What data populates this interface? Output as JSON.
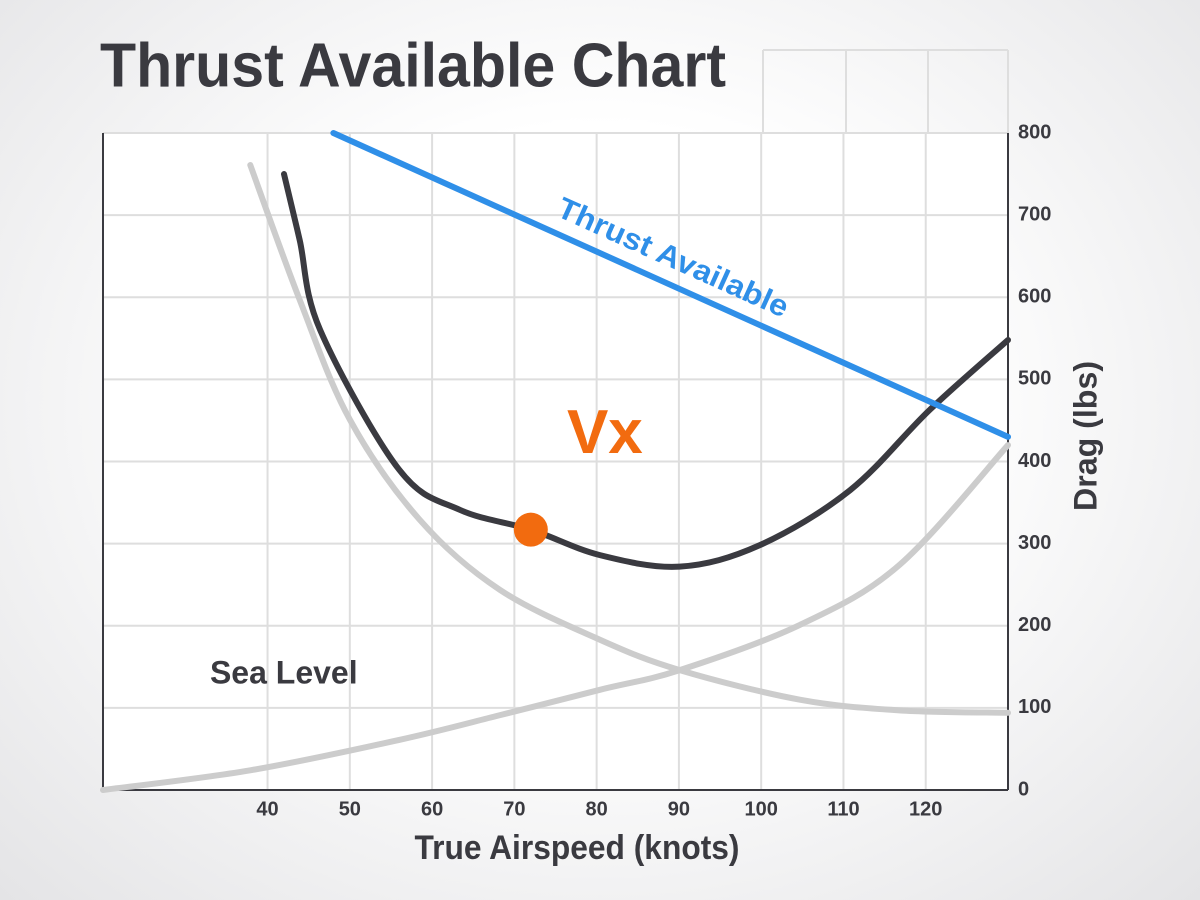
{
  "chart_data": {
    "type": "line",
    "title": "Thrust Available Chart",
    "x_label": "True Airspeed (knots)",
    "y_label": "Drag (lbs)",
    "xlim": [
      20,
      130
    ],
    "ylim": [
      0,
      800
    ],
    "xticks": [
      40,
      50,
      60,
      70,
      80,
      90,
      100,
      110,
      120
    ],
    "yticks": [
      0,
      100,
      200,
      300,
      400,
      500,
      600,
      700,
      800
    ],
    "grid": true,
    "series": [
      {
        "name": "Thrust Available",
        "color": "#2f8fe8",
        "x": [
          48,
          130
        ],
        "values": [
          800,
          430
        ]
      },
      {
        "color": "#3a3a40",
        "x": [
          42,
          43.9,
          46.4,
          56,
          63.4,
          72,
          80.4,
          90.1,
          99.8,
          110.8,
          120.5,
          130
        ],
        "values": [
          750,
          670,
          560,
          390,
          341,
          317,
          286,
          272,
          298,
          365,
          463,
          548
        ]
      },
      {
        "color": "#cccccc",
        "x": [
          37.9,
          43.9,
          50,
          58.5,
          68.2,
          80.4,
          90.1,
          104.7,
          116.8,
          130
        ],
        "values": [
          761,
          597,
          451,
          329,
          244,
          183,
          146,
          110,
          97,
          94
        ]
      },
      {
        "color": "#cccccc",
        "x": [
          20,
          37.9,
          56,
          68.2,
          80.4,
          90.1,
          104.7,
          116.8,
          130
        ],
        "values": [
          0,
          24,
          61,
          91,
          122,
          146,
          201,
          274,
          420
        ]
      }
    ],
    "marker": {
      "x": 72,
      "y": 317,
      "color": "#f26b0f"
    },
    "annotations": [
      {
        "text": "Vx",
        "x": 81,
        "y": 430,
        "color": "#f26b0f"
      },
      {
        "text": "Sea Level",
        "x": 33,
        "y": 140,
        "color": "#3a3a40"
      }
    ]
  }
}
